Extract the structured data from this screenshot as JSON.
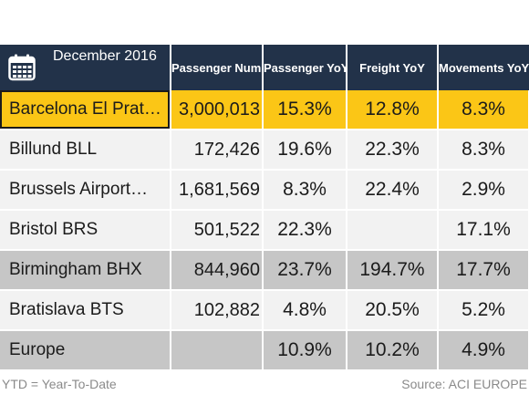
{
  "header": {
    "period": "December 2016",
    "columns": [
      "Passenger Number",
      "Passenger YoY",
      "Freight YoY",
      "Movements YoY"
    ],
    "icon": "calendar-icon"
  },
  "rows": [
    {
      "airport": "Barcelona El Prat…",
      "passengers": "3,000,013",
      "pax_yoy": "15.3%",
      "freight_yoy": "12.8%",
      "movements_yoy": "8.3%"
    },
    {
      "airport": "Billund BLL",
      "passengers": "172,426",
      "pax_yoy": "19.6%",
      "freight_yoy": "22.3%",
      "movements_yoy": "8.3%"
    },
    {
      "airport": "Brussels Airport…",
      "passengers": "1,681,569",
      "pax_yoy": "8.3%",
      "freight_yoy": "22.4%",
      "movements_yoy": "2.9%"
    },
    {
      "airport": "Bristol BRS",
      "passengers": "501,522",
      "pax_yoy": "22.3%",
      "freight_yoy": "",
      "movements_yoy": "17.1%"
    },
    {
      "airport": "Birmingham BHX",
      "passengers": "844,960",
      "pax_yoy": "23.7%",
      "freight_yoy": "194.7%",
      "movements_yoy": "17.7%"
    },
    {
      "airport": "Bratislava BTS",
      "passengers": "102,882",
      "pax_yoy": "4.8%",
      "freight_yoy": "20.5%",
      "movements_yoy": "5.2%"
    },
    {
      "airport": "Europe",
      "passengers": "",
      "pax_yoy": "10.9%",
      "freight_yoy": "10.2%",
      "movements_yoy": "4.9%"
    }
  ],
  "footer": {
    "note": "YTD = Year-To-Date",
    "source": "Source: ACI EUROPE"
  },
  "colors": {
    "header_bg": "#223249",
    "highlight": "#fbc616",
    "row_light": "#f2f2f2",
    "row_gray": "#c6c6c6"
  }
}
